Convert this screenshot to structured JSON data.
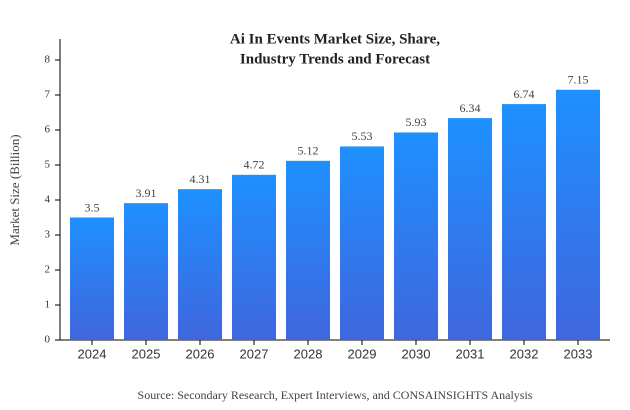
{
  "chart_data": {
    "type": "bar",
    "title": [
      "Ai In Events Market Size, Share,",
      "Industry Trends and Forecast"
    ],
    "y_label": "Market Size (Billion)",
    "source": "Source: Secondary Research, Expert Interviews, and CONSAINSIGHTS Analysis",
    "categories": [
      "2024",
      "2025",
      "2026",
      "2027",
      "2028",
      "2029",
      "2030",
      "2031",
      "2032",
      "2033"
    ],
    "values": [
      3.5,
      3.91,
      4.31,
      4.72,
      5.12,
      5.53,
      5.93,
      6.34,
      6.74,
      7.15
    ],
    "colors": [
      "#1e90ff",
      "#4066dd"
    ],
    "ylim": [
      0,
      8.6
    ],
    "yticks": [
      0,
      1,
      2,
      3,
      4,
      5,
      6,
      7,
      8
    ]
  }
}
